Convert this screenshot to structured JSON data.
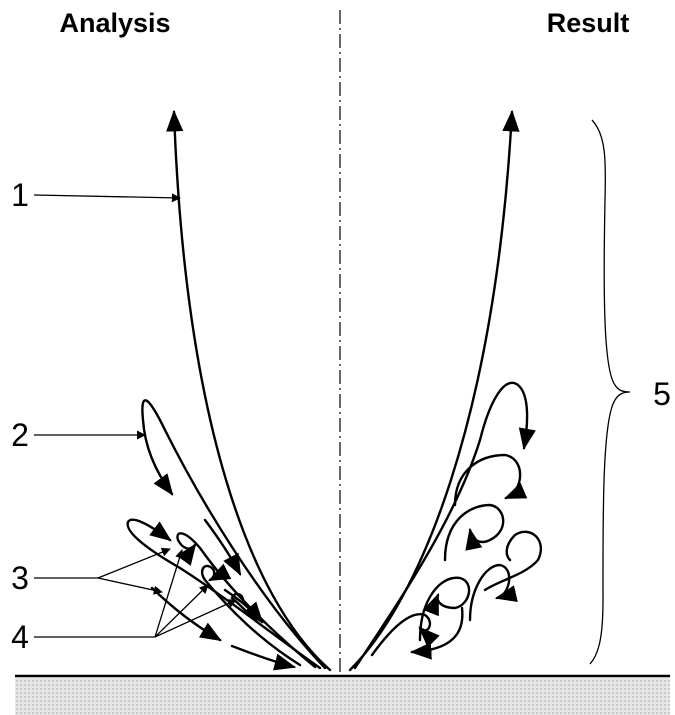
{
  "headers": {
    "left": "Analysis",
    "right": "Result"
  },
  "labels": [
    "1",
    "2",
    "3",
    "4",
    "5"
  ]
}
